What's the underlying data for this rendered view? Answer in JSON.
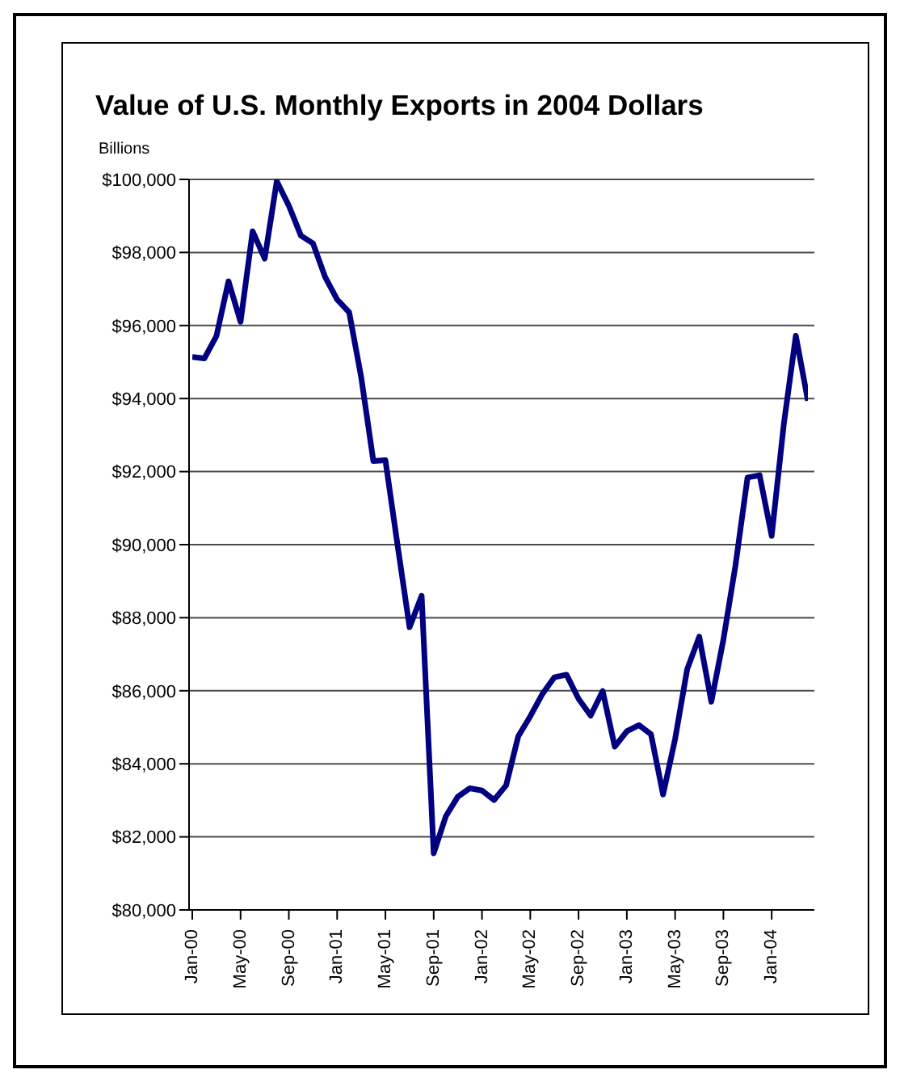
{
  "chart_data": {
    "type": "line",
    "title": "Value of U.S. Monthly Exports in 2004 Dollars",
    "ylabel": "Billions",
    "categories": [
      "Jan-00",
      null,
      null,
      null,
      "May-00",
      null,
      null,
      null,
      "Sep-00",
      null,
      null,
      null,
      "Jan-01",
      null,
      null,
      null,
      "May-01",
      null,
      null,
      null,
      "Sep-01",
      null,
      null,
      null,
      "Jan-02",
      null,
      null,
      null,
      "May-02",
      null,
      null,
      null,
      "Sep-02",
      null,
      null,
      null,
      "Jan-03",
      null,
      null,
      null,
      "May-03",
      null,
      null,
      null,
      "Sep-03",
      null,
      null,
      null,
      "Jan-04",
      null,
      null,
      null
    ],
    "series": [
      {
        "color": "#000080",
        "values": [
          95140,
          95100,
          95710,
          97210,
          96100,
          98580,
          97830,
          99950,
          99280,
          98460,
          98250,
          97330,
          96710,
          96360,
          94570,
          92290,
          92310,
          90000,
          87740,
          88600,
          81550,
          82560,
          83100,
          83330,
          83270,
          83010,
          83410,
          84750,
          85300,
          85910,
          86370,
          86440,
          85780,
          85320,
          85990,
          84470,
          84890,
          85060,
          84810,
          83160,
          84680,
          86590,
          87480,
          85700,
          87400,
          89430,
          91840,
          91900,
          90240,
          93290,
          95720,
          93940
        ]
      }
    ],
    "ylim": [
      80000,
      100000
    ],
    "yticks": [
      {
        "value": 80000,
        "label": "$80,000"
      },
      {
        "value": 82000,
        "label": "$82,000"
      },
      {
        "value": 84000,
        "label": "$84,000"
      },
      {
        "value": 86000,
        "label": "$86,000"
      },
      {
        "value": 88000,
        "label": "$88,000"
      },
      {
        "value": 90000,
        "label": "$90,000"
      },
      {
        "value": 92000,
        "label": "$92,000"
      },
      {
        "value": 94000,
        "label": "$94,000"
      },
      {
        "value": 96000,
        "label": "$96,000"
      },
      {
        "value": 98000,
        "label": "$98,000"
      },
      {
        "value": 100000,
        "label": "$100,000"
      }
    ],
    "grid": "y",
    "legend": false,
    "marker": "none",
    "line_style": "solid"
  }
}
